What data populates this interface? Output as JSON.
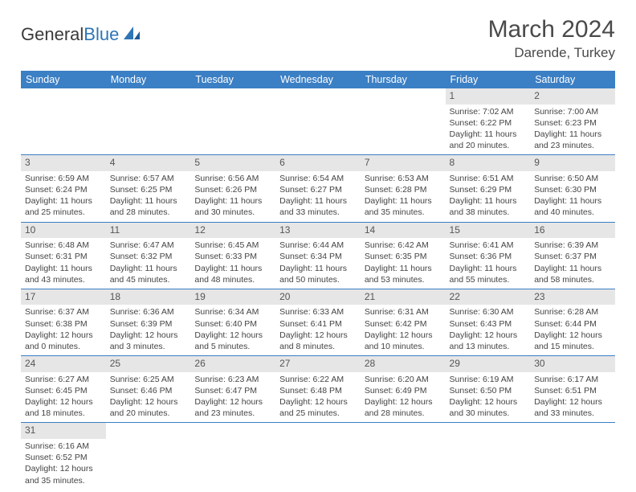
{
  "logo": {
    "text1": "General",
    "text2": "Blue"
  },
  "title": "March 2024",
  "location": "Darende, Turkey",
  "colors": {
    "header_bg": "#3b7fc4",
    "header_text": "#ffffff",
    "daynum_bg": "#e6e6e6",
    "daynum_text": "#555555",
    "border": "#3b7fc4",
    "text": "#444444",
    "logo_blue": "#2e75b6"
  },
  "weekdays": [
    "Sunday",
    "Monday",
    "Tuesday",
    "Wednesday",
    "Thursday",
    "Friday",
    "Saturday"
  ],
  "weeks": [
    [
      null,
      null,
      null,
      null,
      null,
      {
        "n": "1",
        "sr": "Sunrise: 7:02 AM",
        "ss": "Sunset: 6:22 PM",
        "dl": "Daylight: 11 hours and 20 minutes."
      },
      {
        "n": "2",
        "sr": "Sunrise: 7:00 AM",
        "ss": "Sunset: 6:23 PM",
        "dl": "Daylight: 11 hours and 23 minutes."
      }
    ],
    [
      {
        "n": "3",
        "sr": "Sunrise: 6:59 AM",
        "ss": "Sunset: 6:24 PM",
        "dl": "Daylight: 11 hours and 25 minutes."
      },
      {
        "n": "4",
        "sr": "Sunrise: 6:57 AM",
        "ss": "Sunset: 6:25 PM",
        "dl": "Daylight: 11 hours and 28 minutes."
      },
      {
        "n": "5",
        "sr": "Sunrise: 6:56 AM",
        "ss": "Sunset: 6:26 PM",
        "dl": "Daylight: 11 hours and 30 minutes."
      },
      {
        "n": "6",
        "sr": "Sunrise: 6:54 AM",
        "ss": "Sunset: 6:27 PM",
        "dl": "Daylight: 11 hours and 33 minutes."
      },
      {
        "n": "7",
        "sr": "Sunrise: 6:53 AM",
        "ss": "Sunset: 6:28 PM",
        "dl": "Daylight: 11 hours and 35 minutes."
      },
      {
        "n": "8",
        "sr": "Sunrise: 6:51 AM",
        "ss": "Sunset: 6:29 PM",
        "dl": "Daylight: 11 hours and 38 minutes."
      },
      {
        "n": "9",
        "sr": "Sunrise: 6:50 AM",
        "ss": "Sunset: 6:30 PM",
        "dl": "Daylight: 11 hours and 40 minutes."
      }
    ],
    [
      {
        "n": "10",
        "sr": "Sunrise: 6:48 AM",
        "ss": "Sunset: 6:31 PM",
        "dl": "Daylight: 11 hours and 43 minutes."
      },
      {
        "n": "11",
        "sr": "Sunrise: 6:47 AM",
        "ss": "Sunset: 6:32 PM",
        "dl": "Daylight: 11 hours and 45 minutes."
      },
      {
        "n": "12",
        "sr": "Sunrise: 6:45 AM",
        "ss": "Sunset: 6:33 PM",
        "dl": "Daylight: 11 hours and 48 minutes."
      },
      {
        "n": "13",
        "sr": "Sunrise: 6:44 AM",
        "ss": "Sunset: 6:34 PM",
        "dl": "Daylight: 11 hours and 50 minutes."
      },
      {
        "n": "14",
        "sr": "Sunrise: 6:42 AM",
        "ss": "Sunset: 6:35 PM",
        "dl": "Daylight: 11 hours and 53 minutes."
      },
      {
        "n": "15",
        "sr": "Sunrise: 6:41 AM",
        "ss": "Sunset: 6:36 PM",
        "dl": "Daylight: 11 hours and 55 minutes."
      },
      {
        "n": "16",
        "sr": "Sunrise: 6:39 AM",
        "ss": "Sunset: 6:37 PM",
        "dl": "Daylight: 11 hours and 58 minutes."
      }
    ],
    [
      {
        "n": "17",
        "sr": "Sunrise: 6:37 AM",
        "ss": "Sunset: 6:38 PM",
        "dl": "Daylight: 12 hours and 0 minutes."
      },
      {
        "n": "18",
        "sr": "Sunrise: 6:36 AM",
        "ss": "Sunset: 6:39 PM",
        "dl": "Daylight: 12 hours and 3 minutes."
      },
      {
        "n": "19",
        "sr": "Sunrise: 6:34 AM",
        "ss": "Sunset: 6:40 PM",
        "dl": "Daylight: 12 hours and 5 minutes."
      },
      {
        "n": "20",
        "sr": "Sunrise: 6:33 AM",
        "ss": "Sunset: 6:41 PM",
        "dl": "Daylight: 12 hours and 8 minutes."
      },
      {
        "n": "21",
        "sr": "Sunrise: 6:31 AM",
        "ss": "Sunset: 6:42 PM",
        "dl": "Daylight: 12 hours and 10 minutes."
      },
      {
        "n": "22",
        "sr": "Sunrise: 6:30 AM",
        "ss": "Sunset: 6:43 PM",
        "dl": "Daylight: 12 hours and 13 minutes."
      },
      {
        "n": "23",
        "sr": "Sunrise: 6:28 AM",
        "ss": "Sunset: 6:44 PM",
        "dl": "Daylight: 12 hours and 15 minutes."
      }
    ],
    [
      {
        "n": "24",
        "sr": "Sunrise: 6:27 AM",
        "ss": "Sunset: 6:45 PM",
        "dl": "Daylight: 12 hours and 18 minutes."
      },
      {
        "n": "25",
        "sr": "Sunrise: 6:25 AM",
        "ss": "Sunset: 6:46 PM",
        "dl": "Daylight: 12 hours and 20 minutes."
      },
      {
        "n": "26",
        "sr": "Sunrise: 6:23 AM",
        "ss": "Sunset: 6:47 PM",
        "dl": "Daylight: 12 hours and 23 minutes."
      },
      {
        "n": "27",
        "sr": "Sunrise: 6:22 AM",
        "ss": "Sunset: 6:48 PM",
        "dl": "Daylight: 12 hours and 25 minutes."
      },
      {
        "n": "28",
        "sr": "Sunrise: 6:20 AM",
        "ss": "Sunset: 6:49 PM",
        "dl": "Daylight: 12 hours and 28 minutes."
      },
      {
        "n": "29",
        "sr": "Sunrise: 6:19 AM",
        "ss": "Sunset: 6:50 PM",
        "dl": "Daylight: 12 hours and 30 minutes."
      },
      {
        "n": "30",
        "sr": "Sunrise: 6:17 AM",
        "ss": "Sunset: 6:51 PM",
        "dl": "Daylight: 12 hours and 33 minutes."
      }
    ],
    [
      {
        "n": "31",
        "sr": "Sunrise: 6:16 AM",
        "ss": "Sunset: 6:52 PM",
        "dl": "Daylight: 12 hours and 35 minutes."
      },
      null,
      null,
      null,
      null,
      null,
      null
    ]
  ]
}
